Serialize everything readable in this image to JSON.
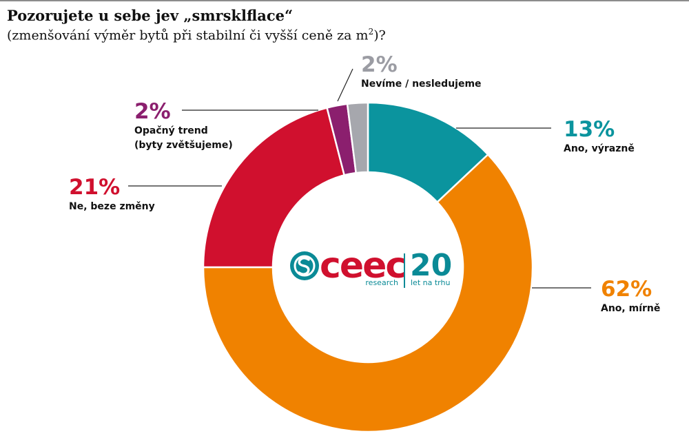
{
  "header": {
    "title": "Pozorujete u sebe jev „smrsklflace“",
    "subtitle_main": "(zmenšování výměr bytů při stabilní či vyšší ceně za m",
    "subtitle_sup": "2",
    "subtitle_end": ")?"
  },
  "logo": {
    "brand": "ceec",
    "sub1": "research",
    "years": "20",
    "sub2": "let na trhu",
    "colors": {
      "brand": "#d0102e",
      "accent": "#0a8a96"
    }
  },
  "chart_data": {
    "type": "pie",
    "variant": "donut",
    "start_angle_deg": 0,
    "slices": [
      {
        "label": "Ano, výrazně",
        "label_lines": [
          "Ano, výrazně"
        ],
        "value": 13,
        "display": "13%",
        "color": "#0b949e"
      },
      {
        "label": "Ano, mírně",
        "label_lines": [
          "Ano, mírně"
        ],
        "value": 62,
        "display": "62%",
        "color": "#f08200"
      },
      {
        "label": "Ne, beze změny",
        "label_lines": [
          "Ne, beze změny"
        ],
        "value": 21,
        "display": "21%",
        "color": "#d0102e"
      },
      {
        "label": "Opačný trend (byty zvětšujeme)",
        "label_lines": [
          "Opačný trend",
          "(byty zvětšujeme)"
        ],
        "value": 2,
        "display": "2%",
        "color": "#8b1f6e"
      },
      {
        "label": "Nevíme / nesledujeme",
        "label_lines": [
          "Nevíme / nesledujeme"
        ],
        "value": 2,
        "display": "2%",
        "color": "#a6a7ad"
      }
    ]
  }
}
